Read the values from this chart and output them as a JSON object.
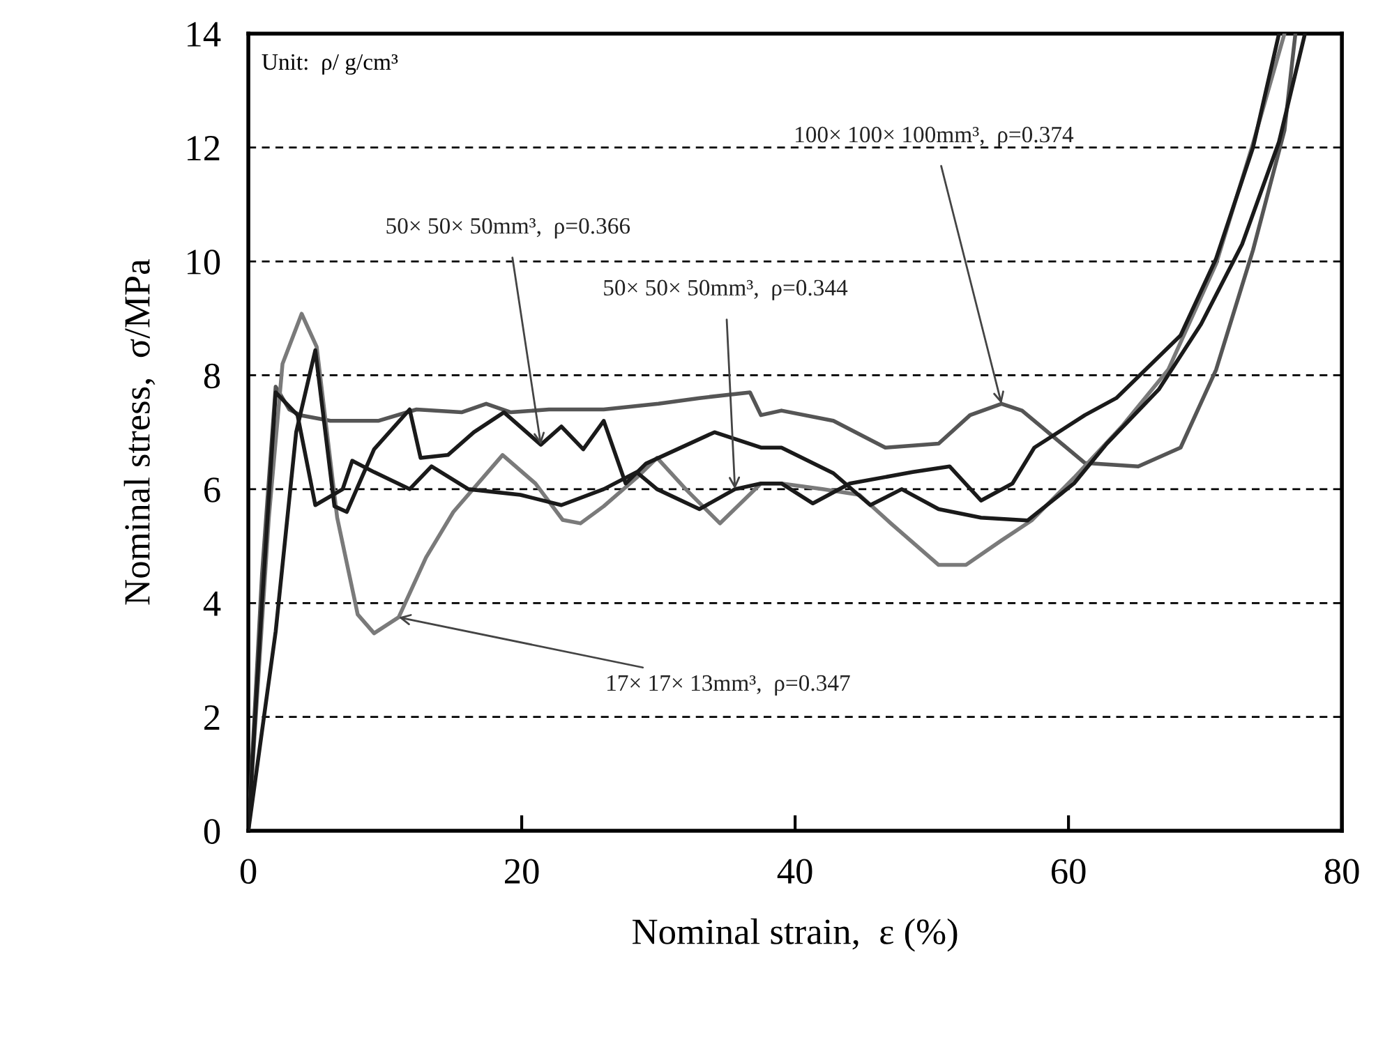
{
  "chart_data": {
    "type": "line",
    "xlabel": "Nominal strain,  ε (%)",
    "ylabel": "Nominal stress,  σ/MPa",
    "xlim": [
      0,
      80
    ],
    "xticks": [
      0,
      20,
      40,
      60,
      80
    ],
    "ylim": [
      0,
      14
    ],
    "yticks": [
      0,
      2,
      4,
      6,
      8,
      10,
      12,
      14
    ],
    "grid": "y",
    "marker": "none",
    "line_style": "solid",
    "series": [
      {
        "color": "#555555",
        "x": [
          0,
          1,
          2,
          3,
          3.8,
          6,
          9.5,
          12.3,
          15.6,
          17.4,
          19.2,
          22,
          26,
          30,
          33,
          36.7,
          37.5,
          39,
          42.8,
          46.6,
          50.5,
          52.8,
          55.1,
          56.6,
          61.2,
          65.1,
          68.2,
          70.8,
          73.5,
          75.8,
          76.6
        ],
        "values": [
          0,
          4.5,
          7.8,
          7.4,
          7.3,
          7.2,
          7.2,
          7.4,
          7.35,
          7.5,
          7.35,
          7.4,
          7.4,
          7.5,
          7.6,
          7.7,
          7.3,
          7.38,
          7.2,
          6.73,
          6.8,
          7.3,
          7.5,
          7.38,
          6.46,
          6.4,
          6.73,
          8.1,
          10.2,
          12.3,
          14
        ]
      },
      {
        "color": "#7a7a7a",
        "x": [
          0,
          1.5,
          2.5,
          3.9,
          5,
          6.5,
          8,
          9.2,
          11,
          13,
          15,
          18.6,
          21,
          23,
          24.3,
          26,
          28.4,
          29.9,
          32,
          34.5,
          37.5,
          39,
          42,
          44.7,
          47,
          50.5,
          52.5,
          55.1,
          57.3,
          60.4,
          63.9,
          67.3,
          70.8,
          73.5,
          75.8
        ],
        "values": [
          0,
          5.5,
          8.2,
          9.08,
          8.5,
          5.5,
          3.8,
          3.47,
          3.75,
          4.8,
          5.6,
          6.6,
          6.1,
          5.46,
          5.4,
          5.7,
          6.2,
          6.55,
          6.0,
          5.4,
          6.1,
          6.1,
          6.0,
          5.9,
          5.4,
          4.67,
          4.67,
          5.1,
          5.45,
          6.2,
          7.1,
          8.1,
          9.96,
          12.07,
          14
        ]
      },
      {
        "color": "#1a1a1a",
        "x": [
          0,
          2,
          3.5,
          4.9,
          6.3,
          7.2,
          9.2,
          11.8,
          12.6,
          14.6,
          16.5,
          18.7,
          21.4,
          22.9,
          24.5,
          26,
          27.6,
          29.1,
          34.1,
          37.5,
          39,
          42.8,
          45.5,
          47.8,
          50.5,
          53.6,
          57,
          60.4,
          62.8,
          66.6,
          69.7,
          72.7,
          75.4,
          77.3
        ],
        "values": [
          0,
          3.5,
          7.0,
          8.44,
          5.7,
          5.6,
          6.7,
          7.4,
          6.55,
          6.6,
          7.0,
          7.35,
          6.78,
          7.1,
          6.7,
          7.2,
          6.1,
          6.45,
          7.0,
          6.73,
          6.73,
          6.28,
          5.72,
          6.0,
          5.65,
          5.5,
          5.45,
          6.1,
          6.8,
          7.75,
          8.9,
          10.3,
          12.1,
          14
        ]
      },
      {
        "color": "#1a1a1a",
        "x": [
          0,
          1,
          2,
          3.6,
          4.9,
          6.9,
          7.6,
          9.2,
          11.8,
          13.4,
          16.1,
          19.9,
          22.9,
          26,
          28.4,
          29.9,
          33,
          35.6,
          37.5,
          39,
          41.3,
          44,
          48.6,
          51.3,
          53.6,
          55.9,
          57.5,
          61.2,
          63.5,
          68.2,
          70.8,
          73.5,
          75.4
        ],
        "values": [
          0,
          4.0,
          7.7,
          7.3,
          5.72,
          6.0,
          6.5,
          6.3,
          6.0,
          6.4,
          6.0,
          5.9,
          5.72,
          6.0,
          6.3,
          6.0,
          5.65,
          6.0,
          6.1,
          6.1,
          5.75,
          6.1,
          6.3,
          6.4,
          5.8,
          6.1,
          6.73,
          7.3,
          7.6,
          8.7,
          10.05,
          12.0,
          14
        ]
      }
    ],
    "annotations": [
      "Unit:  ρ/ g/cm³",
      {
        "text": "100× 100× 100mm³,  ρ=0.374",
        "x": 55.1,
        "y": 7.5
      },
      {
        "text": "50× 50× 50mm³,  ρ=0.366",
        "x": 21.4,
        "y": 6.78
      },
      {
        "text": "50× 50× 50mm³,  ρ=0.344",
        "x": 35.6,
        "y": 6.0
      },
      {
        "text": "17× 17× 13mm³,  ρ=0.347",
        "x": 11,
        "y": 3.75
      }
    ]
  }
}
